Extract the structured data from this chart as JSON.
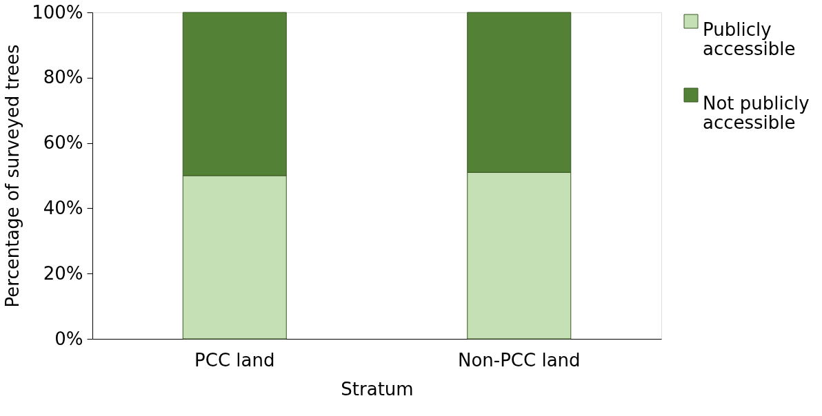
{
  "chart_data": {
    "type": "bar",
    "stacked": true,
    "xlabel": "Stratum",
    "ylabel": "Percentage of surveyed trees",
    "categories": [
      "PCC land",
      "Non-PCC land"
    ],
    "series": [
      {
        "name": "Publicly accessible",
        "color": "#c5e0b4",
        "values": [
          50,
          51
        ]
      },
      {
        "name": "Not publicly accessible",
        "color": "#538135",
        "values": [
          50,
          49
        ]
      }
    ],
    "ylim": [
      0,
      100
    ],
    "yticks": [
      {
        "value": 0,
        "label": "0%"
      },
      {
        "value": 20,
        "label": "20%"
      },
      {
        "value": 40,
        "label": "40%"
      },
      {
        "value": 60,
        "label": "60%"
      },
      {
        "value": 80,
        "label": "80%"
      },
      {
        "value": 100,
        "label": "100%"
      }
    ],
    "grid": false,
    "legend": "right"
  }
}
